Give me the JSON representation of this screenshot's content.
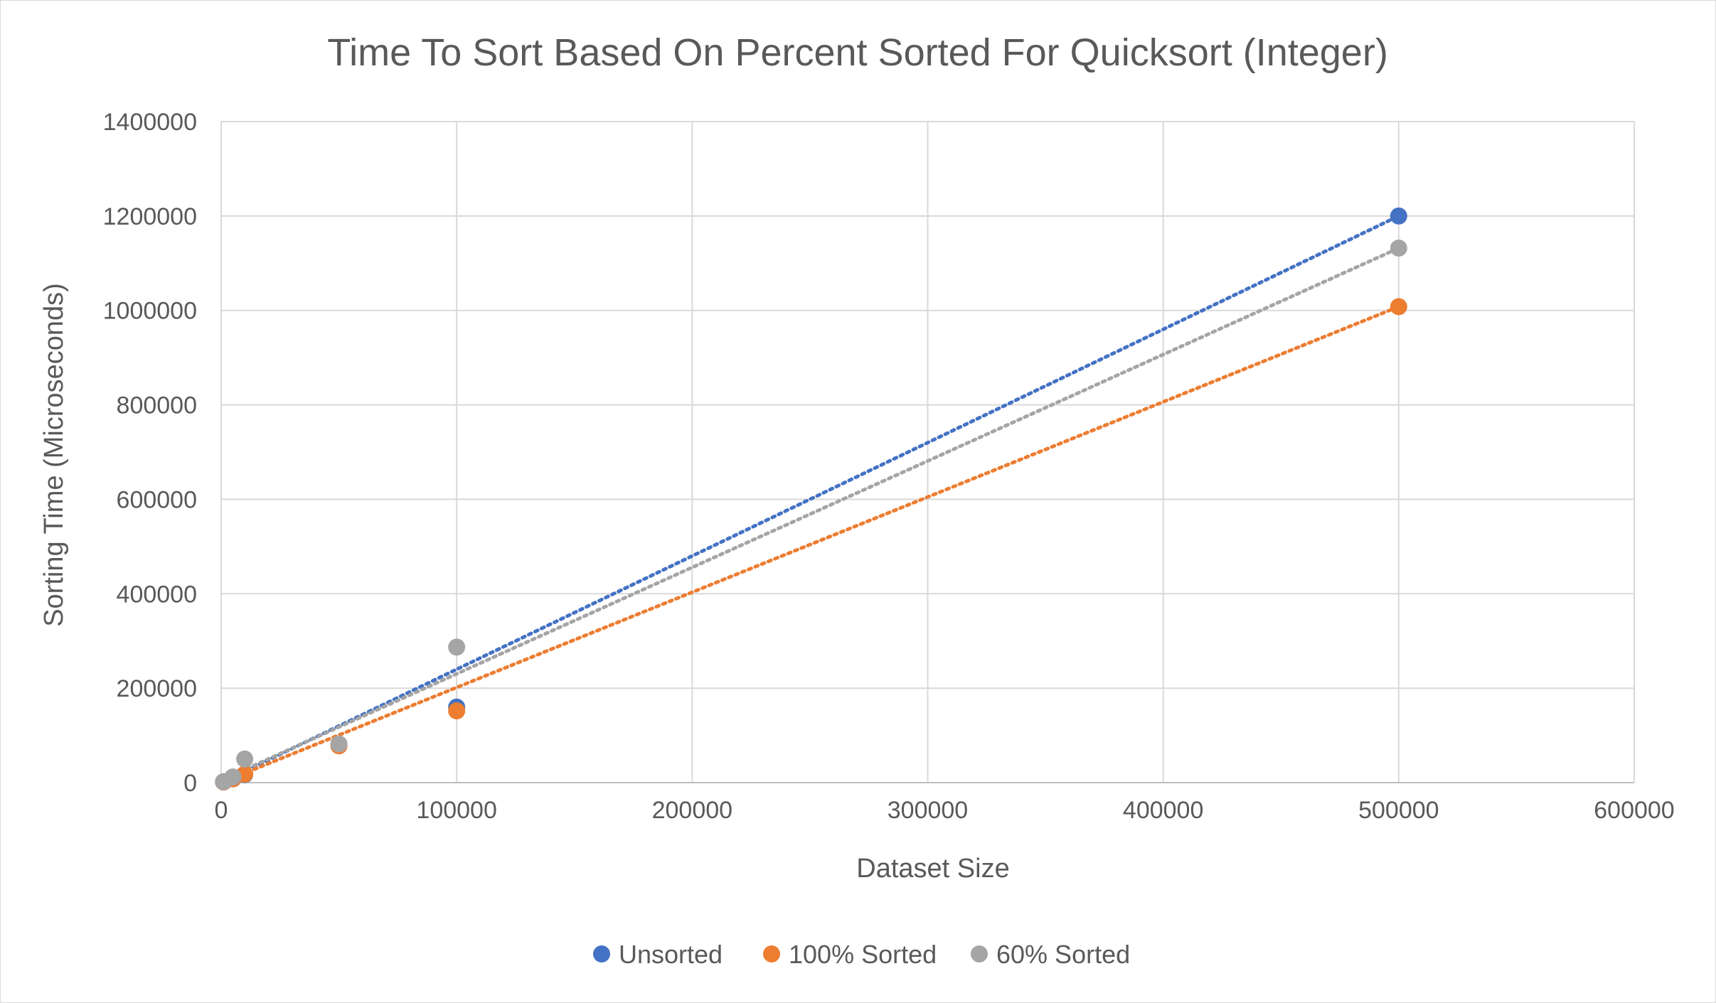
{
  "chart_data": {
    "type": "scatter",
    "title": "Time To Sort Based On Percent Sorted For Quicksort (Integer)",
    "xlabel": "Dataset Size",
    "ylabel": "Sorting Time (Microseconds)",
    "xlim": [
      0,
      600000
    ],
    "ylim": [
      0,
      1400000
    ],
    "x_ticks": [
      "0",
      "100000",
      "200000",
      "300000",
      "400000",
      "500000",
      "600000"
    ],
    "y_ticks": [
      "0",
      "200000",
      "400000",
      "600000",
      "800000",
      "1000000",
      "1200000",
      "1400000"
    ],
    "grid": true,
    "legend_position": "bottom",
    "trendline": "linear (dotted)",
    "series": [
      {
        "name": "Unsorted",
        "color": "#4472C4",
        "x": [
          1000,
          5000,
          10000,
          50000,
          100000,
          500000
        ],
        "y": [
          1500,
          8000,
          17000,
          80000,
          160000,
          1200000
        ],
        "trend": [
          [
            0,
            -23000
          ],
          [
            500000,
            1200000
          ]
        ]
      },
      {
        "name": "100% Sorted",
        "color": "#ED7D31",
        "x": [
          1000,
          5000,
          10000,
          50000,
          100000,
          500000
        ],
        "y": [
          1500,
          8000,
          18000,
          78000,
          152000,
          1008000
        ],
        "trend": [
          [
            0,
            0
          ],
          [
            500000,
            1008000
          ]
        ]
      },
      {
        "name": "60% Sorted",
        "color": "#A5A5A5",
        "x": [
          1000,
          5000,
          10000,
          50000,
          100000,
          500000
        ],
        "y": [
          2000,
          12000,
          50000,
          82000,
          287000,
          1132000
        ],
        "trend": [
          [
            0,
            5000
          ],
          [
            500000,
            1132000
          ]
        ]
      }
    ]
  }
}
